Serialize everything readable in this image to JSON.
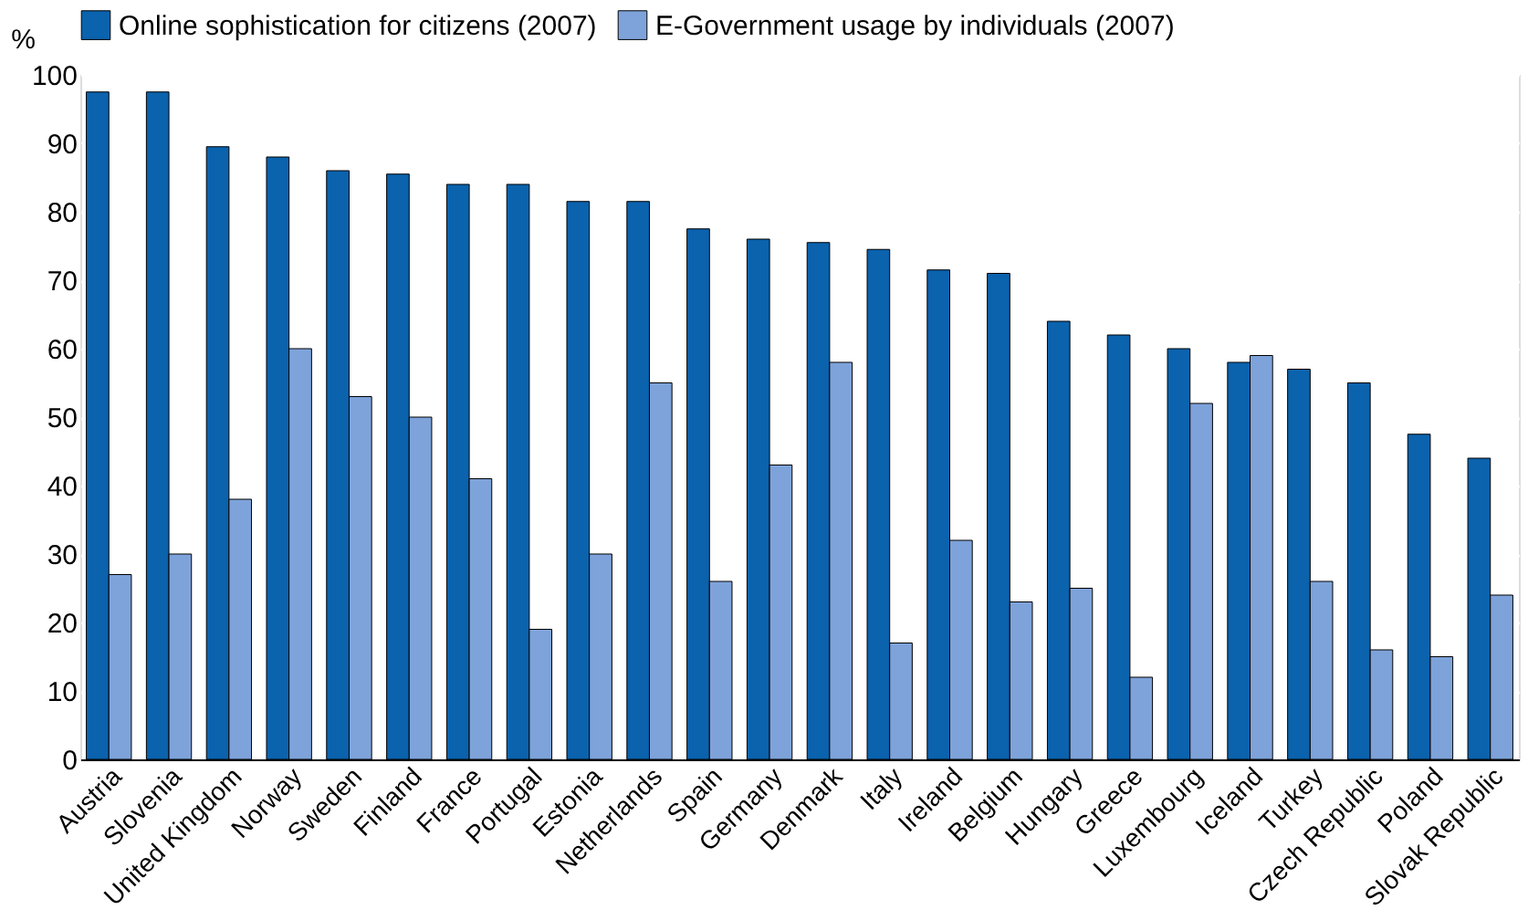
{
  "chart_data": {
    "type": "bar",
    "ylabel": "%",
    "categories": [
      "Austria",
      "Slovenia",
      "United Kingdom",
      "Norway",
      "Sweden",
      "Finland",
      "France",
      "Portugal",
      "Estonia",
      "Netherlands",
      "Spain",
      "Germany",
      "Denmark",
      "Italy",
      "Ireland",
      "Belgium",
      "Hungary",
      "Greece",
      "Luxembourg",
      "Iceland",
      "Turkey",
      "Czech Republic",
      "Poland",
      "Slovak Republic"
    ],
    "series": [
      {
        "name": "Online sophistication for citizens (2007)",
        "color": "#0b62ad",
        "values": [
          97.5,
          97.5,
          89.5,
          88,
          86,
          85.5,
          84,
          84,
          81.5,
          81.5,
          77.5,
          76,
          75.5,
          74.5,
          71.5,
          71,
          64,
          62,
          60,
          58,
          57,
          55,
          47.5,
          44
        ]
      },
      {
        "name": "E-Government usage by individuals (2007)",
        "color": "#7ea3da",
        "values": [
          27,
          30,
          38,
          60,
          53,
          50,
          41,
          19,
          30,
          55,
          26,
          43,
          58,
          17,
          32,
          23,
          25,
          12,
          52,
          59,
          26,
          16,
          15,
          24
        ]
      }
    ],
    "ylim": [
      0,
      100
    ],
    "yticks": [
      0,
      10,
      20,
      30,
      40,
      50,
      60,
      70,
      80,
      90,
      100
    ],
    "grid": "y",
    "legend": "top"
  }
}
